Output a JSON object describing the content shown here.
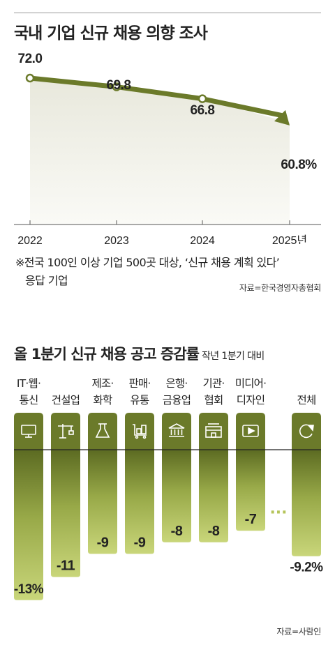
{
  "chart_data": [
    {
      "type": "area",
      "title": "국내 기업 신규 채용 의향 조사",
      "x": [
        "2022",
        "2023",
        "2024",
        "2025년"
      ],
      "values": [
        72.0,
        69.8,
        66.8,
        60.8
      ],
      "value_labels": [
        "72.0",
        "69.8",
        "66.8",
        "60.8%"
      ],
      "ylim": [
        55,
        75
      ],
      "grid": false,
      "note_lines": [
        "※전국 100인 이상 기업 500곳 대상, ‘신규 채용 계획 있다’",
        "응답 기업"
      ],
      "source": "자료=한국경영자총협회",
      "colors": {
        "line": "#6b7a2a",
        "fill_top": "#e8e8dc",
        "fill_bottom": "#fafaf6"
      }
    },
    {
      "type": "bar",
      "title": "올 1분기 신규 채용 공고 증감률",
      "subtitle": "작년 1분기 대비",
      "categories": [
        {
          "lines": [
            "IT·웹·",
            "통신"
          ],
          "icon": "monitor-icon",
          "value": -13,
          "label": "-13%"
        },
        {
          "lines": [
            "",
            "건설업"
          ],
          "icon": "crane-icon",
          "value": -11,
          "label": "-11"
        },
        {
          "lines": [
            "제조·",
            "화학"
          ],
          "icon": "flask-icon",
          "value": -9,
          "label": "-9"
        },
        {
          "lines": [
            "판매·",
            "유통"
          ],
          "icon": "cart-icon",
          "value": -9,
          "label": "-9"
        },
        {
          "lines": [
            "은행·",
            "금융업"
          ],
          "icon": "bank-icon",
          "value": -8,
          "label": "-8"
        },
        {
          "lines": [
            "기관·",
            "협회"
          ],
          "icon": "building-icon",
          "value": -8,
          "label": "-8"
        },
        {
          "lines": [
            "미디어·",
            "디자인"
          ],
          "icon": "play-icon",
          "value": -7,
          "label": "-7"
        }
      ],
      "ellipsis": "···",
      "total": {
        "lines": [
          "",
          "전체"
        ],
        "icon": "refresh-icon",
        "value": -9.2,
        "label": "-9.2%"
      },
      "source": "자료=사람인",
      "colors": {
        "header": "#6b7a2a",
        "bar_top": "#5c6b22",
        "bar_bottom": "#c9d67a",
        "dots": "#b5c45a"
      }
    }
  ]
}
